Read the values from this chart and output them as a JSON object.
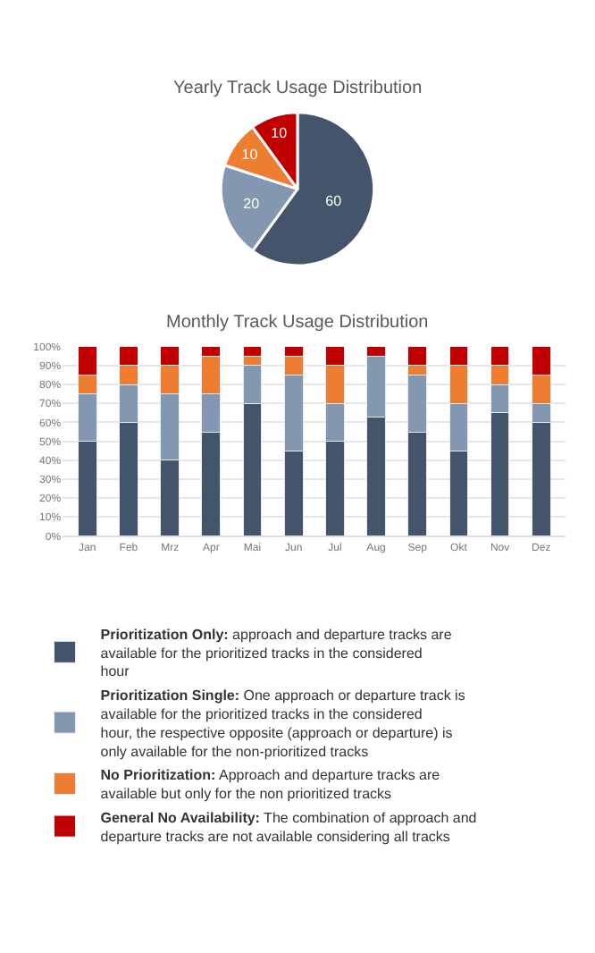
{
  "chart_data": [
    {
      "type": "pie",
      "title": "Yearly Track Usage Distribution",
      "categories": [
        null,
        null,
        null,
        null
      ],
      "values": [
        60,
        20,
        10,
        10
      ],
      "colors": [
        "#44546a",
        "#8497b0",
        "#ed7d31",
        "#c00000"
      ],
      "data_labels": true,
      "legend": false
    },
    {
      "type": "bar",
      "title": "Monthly Track Usage Distribution",
      "stacked": true,
      "categories": [
        "Jan",
        "Feb",
        "Mrz",
        "Apr",
        "Mai",
        "Jun",
        "Jul",
        "Aug",
        "Sep",
        "Okt",
        "Nov",
        "Dez"
      ],
      "series": [
        {
          "name": "Prioritization Only: approach and departure tracks are available for the prioritized tracks in the considered hour",
          "color": "#44546a",
          "values": [
            50,
            60,
            40,
            55,
            70,
            45,
            50,
            63,
            55,
            45,
            65,
            60
          ]
        },
        {
          "name": "Prioritization Single: One approach or departure track is available for the prioritized tracks in the considered hour, the respective opposite (approach or departure) is only available for the non-prioritized tracks",
          "color": "#8497b0",
          "values": [
            25,
            20,
            35,
            20,
            20,
            40,
            20,
            32,
            30,
            25,
            15,
            10
          ]
        },
        {
          "name": "No Prioritization: Approach and departure tracks are available but only for the non prioritized tracks",
          "color": "#ed7d31",
          "values": [
            10,
            10,
            15,
            20,
            5,
            10,
            20,
            0,
            5,
            20,
            10,
            15
          ]
        },
        {
          "name": "General No Availability: The combination of approach and departure tracks are not available considering all tracks",
          "color": "#c00000",
          "values": [
            15,
            10,
            10,
            5,
            5,
            5,
            10,
            5,
            10,
            10,
            10,
            15
          ]
        }
      ],
      "ylim": [
        0,
        100
      ],
      "yticks": [
        {
          "value": 0,
          "label": "0%"
        },
        {
          "value": 10,
          "label": "10%"
        },
        {
          "value": 20,
          "label": "20%"
        },
        {
          "value": 30,
          "label": "30%"
        },
        {
          "value": 40,
          "label": "40%"
        },
        {
          "value": 50,
          "label": "50%"
        },
        {
          "value": 60,
          "label": "60%"
        },
        {
          "value": 70,
          "label": "70%"
        },
        {
          "value": 80,
          "label": "80%"
        },
        {
          "value": 90,
          "label": "90%"
        },
        {
          "value": 100,
          "label": "100%"
        }
      ],
      "grid": "y",
      "legend": "bottom"
    }
  ]
}
